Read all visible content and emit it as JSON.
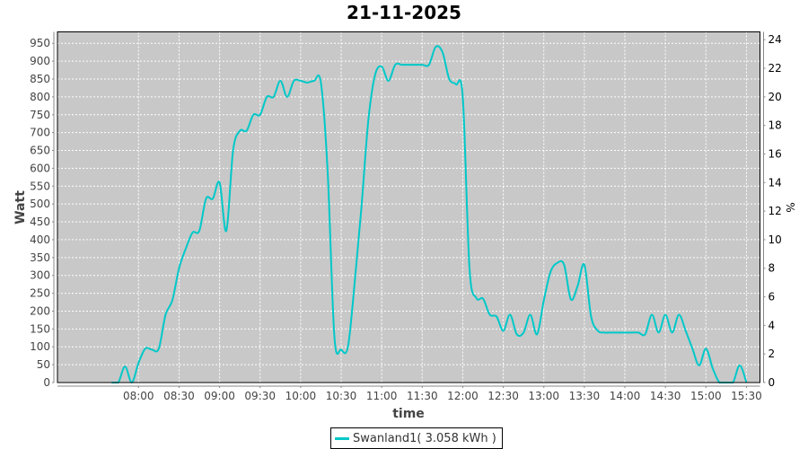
{
  "chart_data": {
    "type": "line",
    "title": "21-11-2025",
    "xlabel": "time",
    "ylabel": "Watt",
    "y2label": "%",
    "xlim": [
      "07:00",
      "15:40"
    ],
    "ylim": [
      0,
      982
    ],
    "y2lim": [
      0,
      24.55
    ],
    "x_ticks": [
      "08:00",
      "08:30",
      "09:00",
      "09:30",
      "10:00",
      "10:30",
      "11:00",
      "11:30",
      "12:00",
      "12:30",
      "13:00",
      "13:30",
      "14:00",
      "14:30",
      "15:00",
      "15:30"
    ],
    "y_ticks": [
      0,
      50,
      100,
      150,
      200,
      250,
      300,
      350,
      400,
      450,
      500,
      550,
      600,
      650,
      700,
      750,
      800,
      850,
      900,
      950
    ],
    "y2_ticks": [
      0,
      2,
      4,
      6,
      8,
      10,
      12,
      14,
      16,
      18,
      20,
      22,
      24
    ],
    "grid": true,
    "legend_placement": "bottom",
    "background": "#c8c8c8",
    "series": [
      {
        "name": "Swanland1( 3.058 kWh )",
        "color": "#00c8c8",
        "x": [
          "07:40",
          "07:45",
          "07:50",
          "07:55",
          "08:00",
          "08:05",
          "08:10",
          "08:15",
          "08:20",
          "08:25",
          "08:30",
          "08:35",
          "08:40",
          "08:45",
          "08:50",
          "08:55",
          "09:00",
          "09:05",
          "09:10",
          "09:15",
          "09:20",
          "09:25",
          "09:30",
          "09:35",
          "09:40",
          "09:45",
          "09:50",
          "09:55",
          "10:00",
          "10:05",
          "10:10",
          "10:15",
          "10:20",
          "10:25",
          "10:30",
          "10:35",
          "10:40",
          "10:45",
          "10:50",
          "10:55",
          "11:00",
          "11:05",
          "11:10",
          "11:15",
          "11:20",
          "11:25",
          "11:30",
          "11:35",
          "11:40",
          "11:45",
          "11:50",
          "11:55",
          "12:00",
          "12:05",
          "12:10",
          "12:15",
          "12:20",
          "12:25",
          "12:30",
          "12:35",
          "12:40",
          "12:45",
          "12:50",
          "12:55",
          "13:00",
          "13:05",
          "13:10",
          "13:15",
          "13:20",
          "13:25",
          "13:30",
          "13:35",
          "13:40",
          "13:45",
          "13:50",
          "13:55",
          "14:00",
          "14:05",
          "14:10",
          "14:15",
          "14:20",
          "14:25",
          "14:30",
          "14:35",
          "14:40",
          "14:45",
          "14:50",
          "14:55",
          "15:00",
          "15:05",
          "15:10",
          "15:15",
          "15:20",
          "15:25",
          "15:30"
        ],
        "values": [
          0,
          0,
          45,
          0,
          55,
          95,
          92,
          95,
          190,
          230,
          320,
          375,
          420,
          425,
          515,
          515,
          560,
          425,
          650,
          705,
          705,
          750,
          750,
          800,
          800,
          845,
          800,
          845,
          845,
          840,
          845,
          840,
          590,
          128,
          92,
          100,
          280,
          490,
          730,
          860,
          885,
          845,
          890,
          890,
          890,
          890,
          890,
          890,
          940,
          925,
          850,
          835,
          800,
          320,
          237,
          235,
          190,
          185,
          145,
          190,
          135,
          140,
          190,
          135,
          230,
          310,
          335,
          330,
          233,
          270,
          330,
          185,
          145,
          140,
          140,
          140,
          140,
          140,
          140,
          135,
          190,
          140,
          190,
          140,
          190,
          145,
          95,
          48,
          95,
          40,
          0,
          0,
          0,
          48,
          0
        ]
      }
    ]
  }
}
